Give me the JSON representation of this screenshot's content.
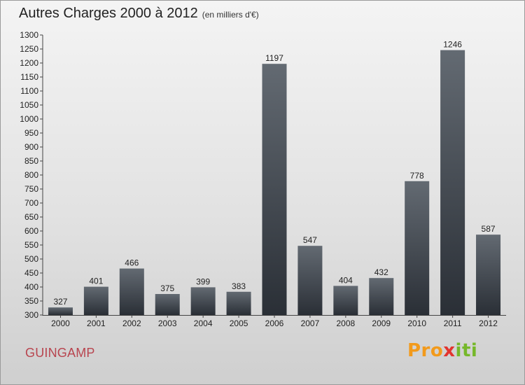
{
  "header": {
    "title": "Autres Charges 2000 à 2012",
    "subtitle": "(en milliers d'€)"
  },
  "footer": {
    "city": "GUINGAMP",
    "logo": {
      "p1": "Pro",
      "p2": "x",
      "p3": "iti"
    }
  },
  "chart_data": {
    "type": "bar",
    "title": "Autres Charges 2000 à 2012",
    "subtitle": "(en milliers d'€)",
    "categories": [
      "2000",
      "2001",
      "2002",
      "2003",
      "2004",
      "2005",
      "2006",
      "2007",
      "2008",
      "2009",
      "2010",
      "2011",
      "2012"
    ],
    "values": [
      327,
      401,
      466,
      375,
      399,
      383,
      1197,
      547,
      404,
      432,
      778,
      1246,
      587
    ],
    "ylim": [
      300,
      1300
    ],
    "ytick_step": 50,
    "grid": false,
    "bar_color": "#3a4048"
  }
}
